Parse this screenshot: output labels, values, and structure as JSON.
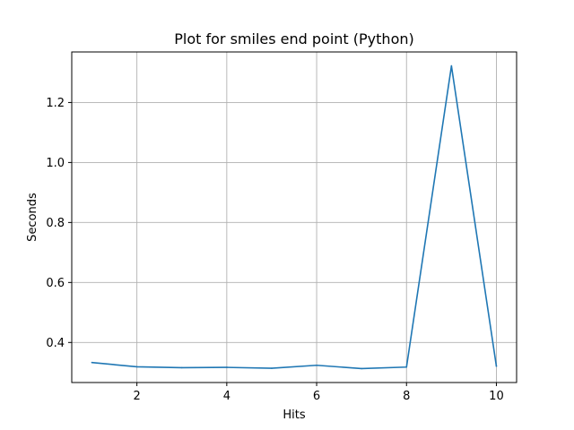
{
  "chart_data": {
    "type": "line",
    "title": "Plot for smiles end point (Python)",
    "xlabel": "Hits",
    "ylabel": "Seconds",
    "x": [
      1,
      2,
      3,
      4,
      5,
      6,
      7,
      8,
      9,
      10
    ],
    "series": [
      {
        "values": [
          0.333,
          0.319,
          0.316,
          0.317,
          0.314,
          0.324,
          0.313,
          0.318,
          1.322,
          0.321
        ],
        "color": "#1f77b4"
      }
    ],
    "xlim": [
      0.55,
      10.45
    ],
    "ylim": [
      0.2665,
      1.3685
    ],
    "xticks": [
      2,
      4,
      6,
      8,
      10
    ],
    "xtick_labels": [
      "2",
      "4",
      "6",
      "8",
      "10"
    ],
    "yticks": [
      0.4,
      0.6,
      0.8,
      1.0,
      1.2
    ],
    "ytick_labels": [
      "0.4",
      "0.6",
      "0.8",
      "1.0",
      "1.2"
    ],
    "grid": true,
    "colors": {
      "grid": "#b0b0b0",
      "axes": "#000000",
      "background": "#ffffff"
    }
  }
}
